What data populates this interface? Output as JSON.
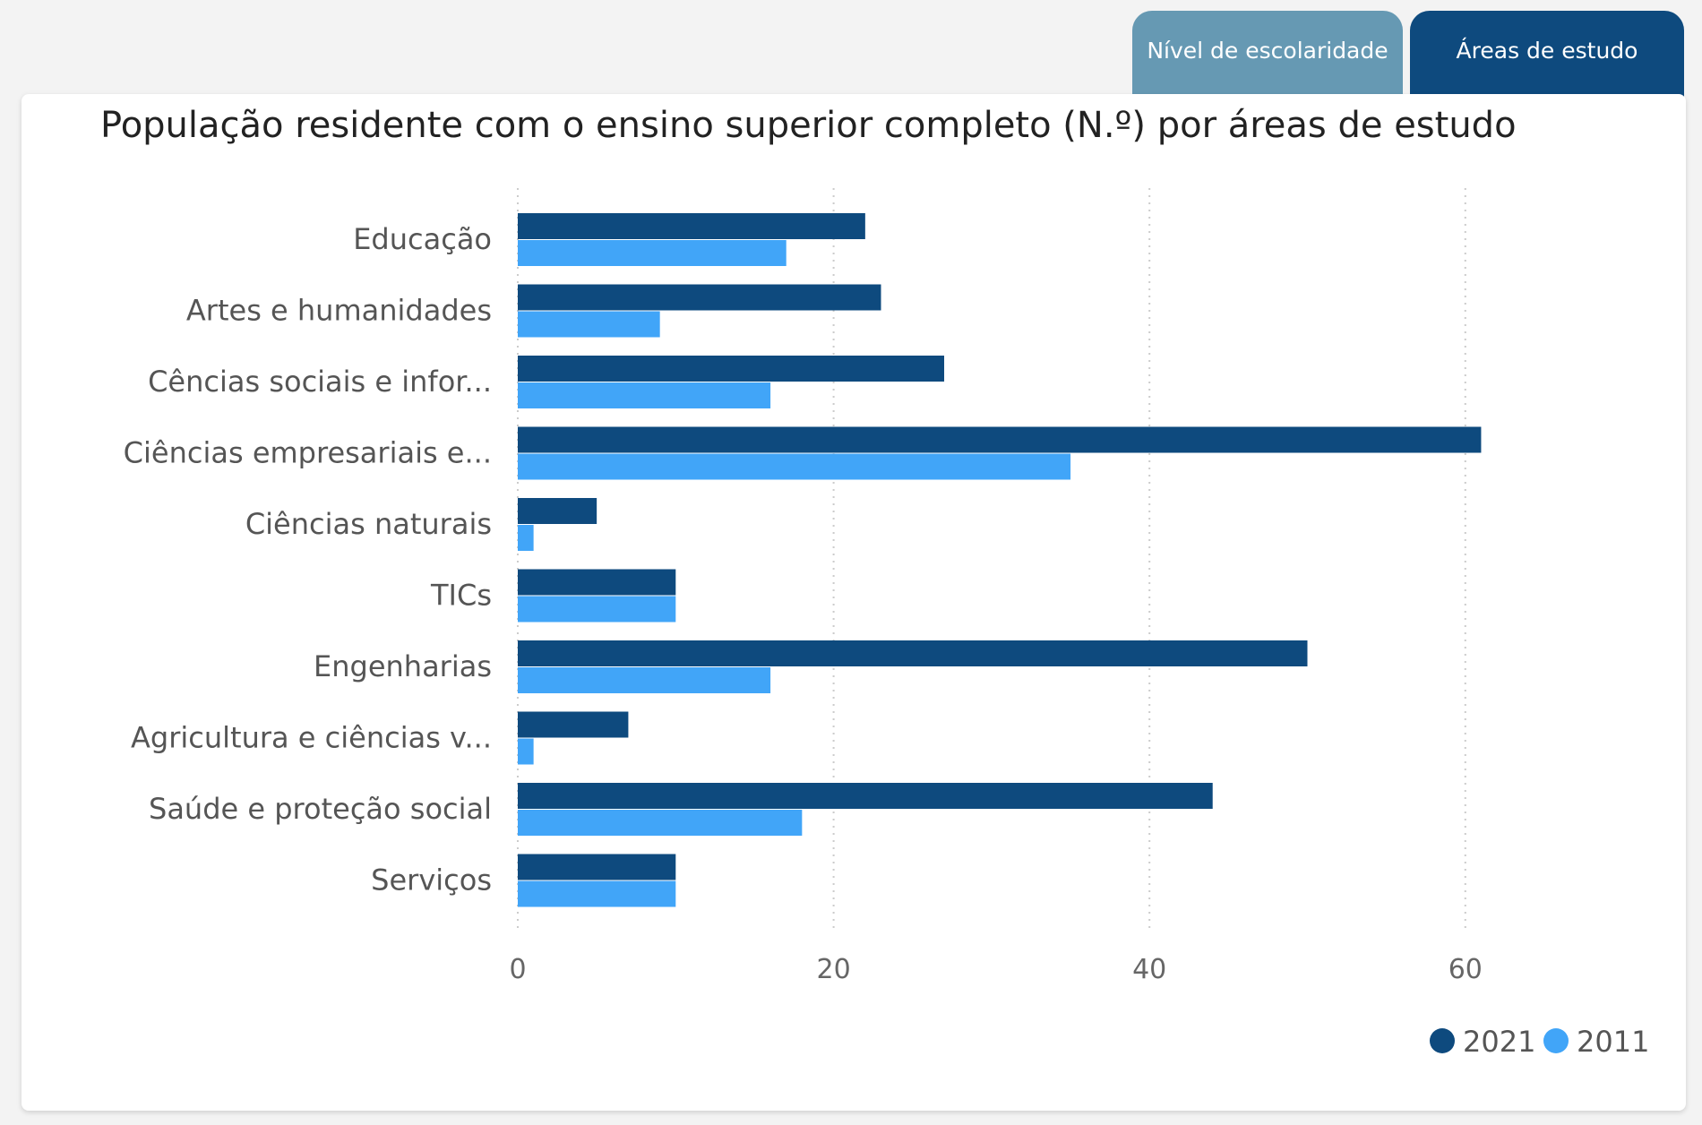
{
  "tabs": [
    {
      "label": "Nível de escolaridade",
      "active": false
    },
    {
      "label": "Áreas de estudo",
      "active": true
    }
  ],
  "colors": {
    "tab_inactive": "#6699b3",
    "tab_active": "#0e4a7e",
    "series_2021": "#0e4a7e",
    "series_2011": "#41a5f8"
  },
  "chart_data": {
    "type": "bar",
    "orientation": "horizontal",
    "title": "População residente com o ensino superior completo (N.º) por áreas de estudo",
    "categories": [
      "Educação",
      "Artes e humanidades",
      "Cências sociais e infor...",
      "Ciências empresariais e...",
      "Ciências naturais",
      "TICs",
      "Engenharias",
      "Agricultura e ciências v...",
      "Saúde e proteção social",
      "Serviços"
    ],
    "series": [
      {
        "name": "2021",
        "color": "#0e4a7e",
        "values": [
          22,
          23,
          27,
          61,
          5,
          10,
          50,
          7,
          44,
          10
        ]
      },
      {
        "name": "2011",
        "color": "#41a5f8",
        "values": [
          17,
          9,
          16,
          35,
          1,
          10,
          16,
          1,
          18,
          10
        ]
      }
    ],
    "xlim": [
      0,
      70
    ],
    "xticks": [
      "0",
      "20",
      "40",
      "60"
    ],
    "grid": true,
    "legend_position": "bottom-right"
  }
}
